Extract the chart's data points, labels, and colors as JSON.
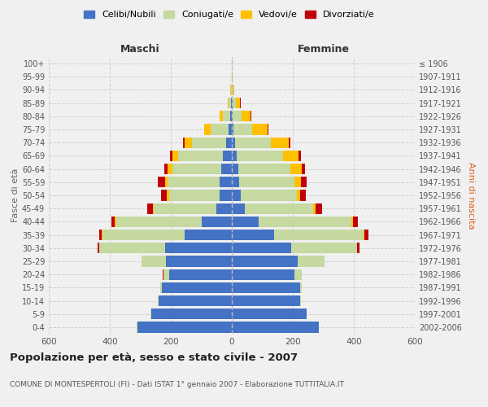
{
  "age_groups": [
    "100+",
    "95-99",
    "90-94",
    "85-89",
    "80-84",
    "75-79",
    "70-74",
    "65-69",
    "60-64",
    "55-59",
    "50-54",
    "45-49",
    "40-44",
    "35-39",
    "30-34",
    "25-29",
    "20-24",
    "15-19",
    "10-14",
    "5-9",
    "0-4"
  ],
  "birth_years": [
    "≤ 1906",
    "1907-1911",
    "1912-1916",
    "1917-1921",
    "1922-1926",
    "1927-1931",
    "1932-1936",
    "1937-1941",
    "1942-1946",
    "1947-1951",
    "1952-1956",
    "1957-1961",
    "1962-1966",
    "1967-1971",
    "1972-1976",
    "1977-1981",
    "1982-1986",
    "1987-1991",
    "1992-1996",
    "1997-2001",
    "2002-2006"
  ],
  "males_celibe": [
    0,
    0,
    1,
    2,
    5,
    10,
    20,
    30,
    35,
    40,
    40,
    50,
    100,
    155,
    220,
    215,
    205,
    230,
    240,
    265,
    310
  ],
  "males_coniugato": [
    0,
    1,
    3,
    8,
    25,
    60,
    110,
    145,
    160,
    170,
    165,
    205,
    280,
    270,
    215,
    80,
    20,
    5,
    2,
    1,
    1
  ],
  "males_vedovo": [
    0,
    0,
    1,
    3,
    10,
    20,
    25,
    20,
    15,
    10,
    8,
    5,
    3,
    2,
    1,
    0,
    0,
    0,
    0,
    0,
    0
  ],
  "males_divorziato": [
    0,
    0,
    0,
    0,
    1,
    2,
    5,
    8,
    12,
    22,
    18,
    18,
    12,
    8,
    5,
    2,
    1,
    0,
    0,
    0,
    0
  ],
  "females_nubile": [
    0,
    0,
    1,
    2,
    3,
    5,
    10,
    15,
    20,
    25,
    30,
    42,
    88,
    138,
    195,
    215,
    205,
    225,
    225,
    245,
    285
  ],
  "females_coniugata": [
    0,
    1,
    3,
    10,
    28,
    62,
    118,
    152,
    172,
    180,
    182,
    225,
    305,
    295,
    215,
    88,
    24,
    5,
    2,
    1,
    1
  ],
  "females_vedova": [
    0,
    1,
    5,
    15,
    30,
    50,
    58,
    52,
    38,
    22,
    13,
    7,
    3,
    2,
    1,
    0,
    0,
    0,
    0,
    0,
    0
  ],
  "females_divorziata": [
    0,
    0,
    0,
    1,
    2,
    3,
    5,
    8,
    10,
    18,
    18,
    22,
    18,
    12,
    7,
    2,
    1,
    0,
    0,
    0,
    0
  ],
  "colors": {
    "celibe": "#4472c4",
    "coniugato": "#c5d9a0",
    "vedovo": "#ffc000",
    "divorziato": "#c0000b"
  },
  "xlim": 600,
  "title": "Popolazione per età, sesso e stato civile - 2007",
  "subtitle": "COMUNE DI MONTESPERTOLI (FI) - Dati ISTAT 1° gennaio 2007 - Elaborazione TUTTITALIA.IT",
  "xlabel_left": "Maschi",
  "xlabel_right": "Femmine",
  "ylabel_left": "Fasce di età",
  "ylabel_right": "Anni di nascita",
  "legend_labels": [
    "Celibi/Nubili",
    "Coniugati/e",
    "Vedovi/e",
    "Divorziati/e"
  ],
  "background_color": "#f0f0f0",
  "grid_color": "#cccccc"
}
